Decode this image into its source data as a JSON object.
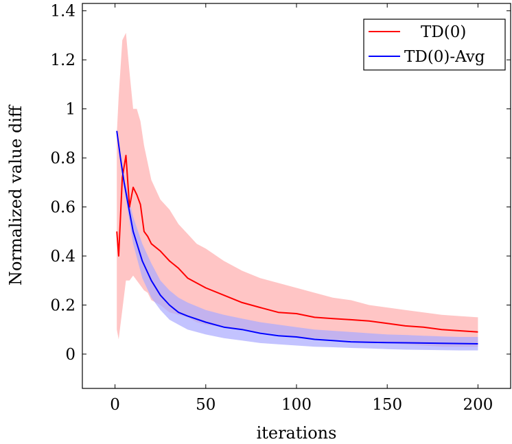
{
  "chart_data": {
    "type": "line",
    "title": "",
    "xlabel": "iterations",
    "ylabel": "Normalized value diff",
    "xlim": [
      -18,
      218
    ],
    "ylim": [
      -0.14,
      1.43
    ],
    "xticks": [
      0,
      50,
      100,
      150,
      200
    ],
    "yticks": [
      0,
      0.2,
      0.4,
      0.6,
      0.8,
      1,
      1.2,
      1.4
    ],
    "xtick_labels": [
      "0",
      "50",
      "100",
      "150",
      "200"
    ],
    "ytick_labels": [
      "0",
      "0.2",
      "0.4",
      "0.6",
      "0.8",
      "1",
      "1.2",
      "1.4"
    ],
    "grid": false,
    "legend_position": "top-right",
    "series": [
      {
        "name": "TD(0)",
        "color": "#ff0000",
        "band_color": "#ffbbbb",
        "x": [
          1,
          2,
          4,
          6,
          8,
          10,
          12,
          14,
          16,
          18,
          20,
          25,
          30,
          35,
          40,
          45,
          50,
          60,
          70,
          80,
          90,
          100,
          110,
          120,
          130,
          140,
          150,
          160,
          170,
          180,
          190,
          200
        ],
        "y": [
          0.5,
          0.4,
          0.72,
          0.81,
          0.6,
          0.68,
          0.65,
          0.61,
          0.5,
          0.48,
          0.45,
          0.42,
          0.38,
          0.35,
          0.31,
          0.29,
          0.27,
          0.24,
          0.21,
          0.19,
          0.17,
          0.165,
          0.15,
          0.145,
          0.14,
          0.135,
          0.125,
          0.115,
          0.11,
          0.1,
          0.095,
          0.09
        ],
        "upper": [
          0.9,
          1.05,
          1.28,
          1.31,
          1.15,
          1.0,
          1.0,
          0.95,
          0.85,
          0.78,
          0.71,
          0.63,
          0.59,
          0.53,
          0.49,
          0.45,
          0.43,
          0.38,
          0.34,
          0.31,
          0.29,
          0.27,
          0.25,
          0.23,
          0.22,
          0.2,
          0.19,
          0.18,
          0.17,
          0.16,
          0.155,
          0.15
        ],
        "lower": [
          0.1,
          0.06,
          0.18,
          0.3,
          0.3,
          0.32,
          0.3,
          0.28,
          0.26,
          0.25,
          0.22,
          0.2,
          0.17,
          0.16,
          0.15,
          0.13,
          0.12,
          0.11,
          0.1,
          0.09,
          0.08,
          0.07,
          0.065,
          0.06,
          0.055,
          0.05,
          0.045,
          0.04,
          0.035,
          0.03,
          0.03,
          0.03
        ]
      },
      {
        "name": "TD(0)-Avg",
        "color": "#0000ff",
        "band_color": "#aaaaff",
        "x": [
          1,
          3,
          5,
          8,
          10,
          15,
          20,
          25,
          30,
          35,
          40,
          50,
          60,
          70,
          80,
          90,
          100,
          110,
          120,
          130,
          140,
          150,
          160,
          170,
          180,
          190,
          200
        ],
        "y": [
          0.91,
          0.8,
          0.7,
          0.58,
          0.5,
          0.38,
          0.3,
          0.24,
          0.2,
          0.17,
          0.155,
          0.13,
          0.11,
          0.1,
          0.085,
          0.075,
          0.07,
          0.06,
          0.055,
          0.05,
          0.048,
          0.047,
          0.046,
          0.045,
          0.044,
          0.043,
          0.042
        ],
        "upper": [
          0.91,
          0.82,
          0.72,
          0.62,
          0.56,
          0.45,
          0.37,
          0.3,
          0.26,
          0.23,
          0.21,
          0.18,
          0.16,
          0.145,
          0.13,
          0.12,
          0.11,
          0.1,
          0.095,
          0.09,
          0.085,
          0.08,
          0.078,
          0.075,
          0.072,
          0.07,
          0.07
        ],
        "lower": [
          0.9,
          0.78,
          0.68,
          0.54,
          0.45,
          0.31,
          0.23,
          0.18,
          0.14,
          0.12,
          0.1,
          0.08,
          0.065,
          0.055,
          0.045,
          0.04,
          0.035,
          0.03,
          0.028,
          0.025,
          0.023,
          0.02,
          0.018,
          0.017,
          0.016,
          0.015,
          0.015
        ]
      }
    ]
  }
}
